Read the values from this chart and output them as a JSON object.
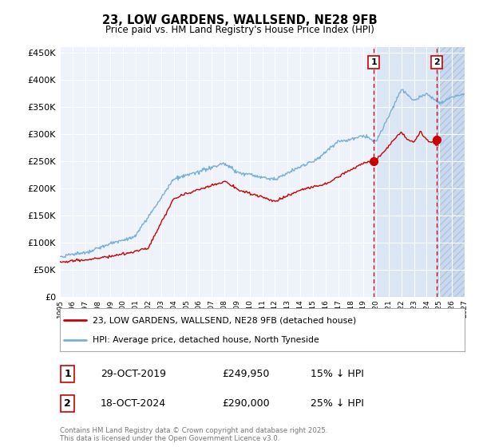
{
  "title": "23, LOW GARDENS, WALLSEND, NE28 9FB",
  "subtitle": "Price paid vs. HM Land Registry's House Price Index (HPI)",
  "legend_label_red": "23, LOW GARDENS, WALLSEND, NE28 9FB (detached house)",
  "legend_label_blue": "HPI: Average price, detached house, North Tyneside",
  "annotation1_label": "1",
  "annotation1_date": "29-OCT-2019",
  "annotation1_price": "£249,950",
  "annotation1_hpi": "15% ↓ HPI",
  "annotation2_label": "2",
  "annotation2_date": "18-OCT-2024",
  "annotation2_price": "£290,000",
  "annotation2_hpi": "25% ↓ HPI",
  "footer": "Contains HM Land Registry data © Crown copyright and database right 2025.\nThis data is licensed under the Open Government Licence v3.0.",
  "red_color": "#cc0000",
  "blue_color": "#7aafd4",
  "vline_color": "#cc0000",
  "background_color": "#ffffff",
  "plot_bg_color": "#eef2fb",
  "grid_color": "#ffffff",
  "shade_color": "#d8e4f5",
  "hatch_color": "#c0d4ee",
  "ylim": [
    0,
    460000
  ],
  "yticks": [
    0,
    50000,
    100000,
    150000,
    200000,
    250000,
    300000,
    350000,
    400000,
    450000
  ],
  "xlim_start": 1995,
  "xlim_end": 2027,
  "point1_x": 2019.83,
  "point1_y": 249950,
  "point2_x": 2024.79,
  "point2_y": 290000,
  "shade_start": 2019.83,
  "shade_end": 2027.0
}
